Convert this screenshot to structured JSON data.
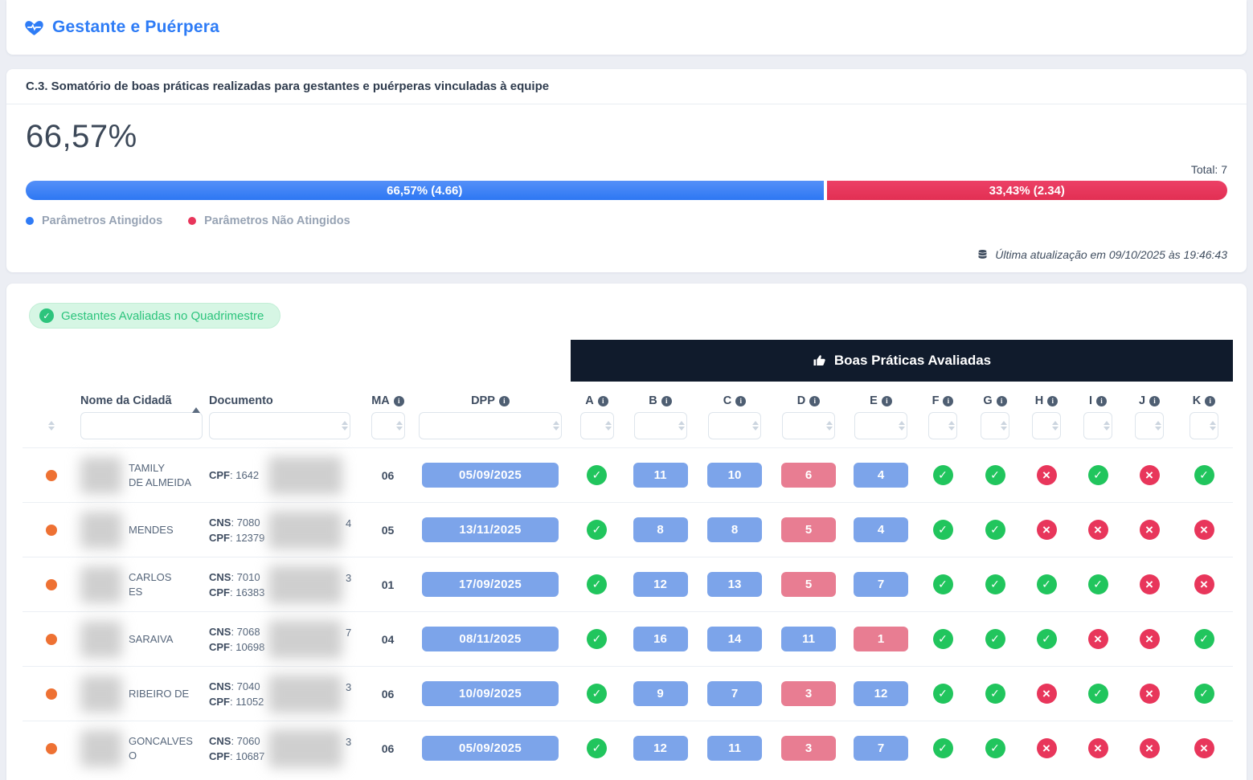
{
  "page": {
    "title": "Gestante e Puérpera"
  },
  "summary": {
    "heading": "C.3. Somatório de boas práticas realizadas para gestantes e puérperas vinculadas à equipe",
    "percent": "66,57%",
    "total": "Total: 7",
    "bar": {
      "achieved": {
        "label": "66,57% (4.66)",
        "pct": 66.57,
        "color": "#3b80f7"
      },
      "not_achieved": {
        "label": "33,43% (2.34)",
        "pct": 33.43,
        "color": "#e63458"
      }
    },
    "legend": {
      "achieved": "Parâmetros Atingidos",
      "not_achieved": "Parâmetros Não Atingidos"
    },
    "updated": "Última atualização em 09/10/2025 às 19:46:43"
  },
  "table": {
    "badge": "Gestantes Avaliadas no Quadrimestre",
    "group_header": "Boas Práticas Avaliadas",
    "columns": {
      "name": "Nome da Cidadã",
      "document": "Documento",
      "ma": "MA",
      "dpp": "DPP"
    },
    "practice_columns": [
      "A",
      "B",
      "C",
      "D",
      "E",
      "F",
      "G",
      "H",
      "I",
      "J",
      "K"
    ],
    "rows": [
      {
        "name_lines": [
          "TAMILY",
          "DE ALMEIDA"
        ],
        "docs": [
          {
            "label": "CPF",
            "value": "1642",
            "suffix": ""
          }
        ],
        "ma": "06",
        "dpp": "05/09/2025",
        "practices": [
          {
            "kind": "check"
          },
          {
            "kind": "num",
            "value": "11",
            "tone": "blue"
          },
          {
            "kind": "num",
            "value": "10",
            "tone": "blue"
          },
          {
            "kind": "num",
            "value": "6",
            "tone": "red"
          },
          {
            "kind": "num",
            "value": "4",
            "tone": "blue"
          },
          {
            "kind": "check"
          },
          {
            "kind": "check"
          },
          {
            "kind": "x"
          },
          {
            "kind": "check"
          },
          {
            "kind": "x"
          },
          {
            "kind": "check"
          }
        ]
      },
      {
        "name_lines": [
          "MENDES"
        ],
        "docs": [
          {
            "label": "CNS",
            "value": "7080",
            "suffix": "4"
          },
          {
            "label": "CPF",
            "value": "12379",
            "suffix": ""
          }
        ],
        "ma": "05",
        "dpp": "13/11/2025",
        "practices": [
          {
            "kind": "check"
          },
          {
            "kind": "num",
            "value": "8",
            "tone": "blue"
          },
          {
            "kind": "num",
            "value": "8",
            "tone": "blue"
          },
          {
            "kind": "num",
            "value": "5",
            "tone": "red"
          },
          {
            "kind": "num",
            "value": "4",
            "tone": "blue"
          },
          {
            "kind": "check"
          },
          {
            "kind": "check"
          },
          {
            "kind": "x"
          },
          {
            "kind": "x"
          },
          {
            "kind": "x"
          },
          {
            "kind": "x"
          }
        ]
      },
      {
        "name_lines": [
          "CARLOS",
          "ES"
        ],
        "docs": [
          {
            "label": "CNS",
            "value": "7010",
            "suffix": "3"
          },
          {
            "label": "CPF",
            "value": "16383",
            "suffix": ""
          }
        ],
        "ma": "01",
        "dpp": "17/09/2025",
        "practices": [
          {
            "kind": "check"
          },
          {
            "kind": "num",
            "value": "12",
            "tone": "blue"
          },
          {
            "kind": "num",
            "value": "13",
            "tone": "blue"
          },
          {
            "kind": "num",
            "value": "5",
            "tone": "red"
          },
          {
            "kind": "num",
            "value": "7",
            "tone": "blue"
          },
          {
            "kind": "check"
          },
          {
            "kind": "check"
          },
          {
            "kind": "check"
          },
          {
            "kind": "check"
          },
          {
            "kind": "x"
          },
          {
            "kind": "x"
          }
        ]
      },
      {
        "name_lines": [
          "SARAIVA"
        ],
        "docs": [
          {
            "label": "CNS",
            "value": "7068",
            "suffix": "7"
          },
          {
            "label": "CPF",
            "value": "10698",
            "suffix": ""
          }
        ],
        "ma": "04",
        "dpp": "08/11/2025",
        "practices": [
          {
            "kind": "check"
          },
          {
            "kind": "num",
            "value": "16",
            "tone": "blue"
          },
          {
            "kind": "num",
            "value": "14",
            "tone": "blue"
          },
          {
            "kind": "num",
            "value": "11",
            "tone": "blue"
          },
          {
            "kind": "num",
            "value": "1",
            "tone": "red"
          },
          {
            "kind": "check"
          },
          {
            "kind": "check"
          },
          {
            "kind": "check"
          },
          {
            "kind": "x"
          },
          {
            "kind": "x"
          },
          {
            "kind": "check"
          }
        ]
      },
      {
        "name_lines": [
          "RIBEIRO DE"
        ],
        "docs": [
          {
            "label": "CNS",
            "value": "7040",
            "suffix": "3"
          },
          {
            "label": "CPF",
            "value": "11052",
            "suffix": ""
          }
        ],
        "ma": "06",
        "dpp": "10/09/2025",
        "practices": [
          {
            "kind": "check"
          },
          {
            "kind": "num",
            "value": "9",
            "tone": "blue"
          },
          {
            "kind": "num",
            "value": "7",
            "tone": "blue"
          },
          {
            "kind": "num",
            "value": "3",
            "tone": "red"
          },
          {
            "kind": "num",
            "value": "12",
            "tone": "blue"
          },
          {
            "kind": "check"
          },
          {
            "kind": "check"
          },
          {
            "kind": "x"
          },
          {
            "kind": "check"
          },
          {
            "kind": "x"
          },
          {
            "kind": "check"
          }
        ]
      },
      {
        "name_lines": [
          "GONCALVES",
          "O"
        ],
        "docs": [
          {
            "label": "CNS",
            "value": "7060",
            "suffix": "3"
          },
          {
            "label": "CPF",
            "value": "10687",
            "suffix": ""
          }
        ],
        "ma": "06",
        "dpp": "05/09/2025",
        "practices": [
          {
            "kind": "check"
          },
          {
            "kind": "num",
            "value": "12",
            "tone": "blue"
          },
          {
            "kind": "num",
            "value": "11",
            "tone": "blue"
          },
          {
            "kind": "num",
            "value": "3",
            "tone": "red"
          },
          {
            "kind": "num",
            "value": "7",
            "tone": "blue"
          },
          {
            "kind": "check"
          },
          {
            "kind": "check"
          },
          {
            "kind": "x"
          },
          {
            "kind": "x"
          },
          {
            "kind": "x"
          },
          {
            "kind": "x"
          }
        ]
      }
    ]
  },
  "colors": {
    "accent_blue": "#2e7cf6",
    "bar_blue": "#3b80f7",
    "bar_red": "#e63458",
    "num_blue": "#7ca4ea",
    "num_red": "#e87d92",
    "check_green": "#21c55d",
    "x_red": "#e8365b",
    "status_orange": "#ee7133",
    "badge_green": "#2cc47c",
    "group_header_bg": "#101b2c"
  }
}
